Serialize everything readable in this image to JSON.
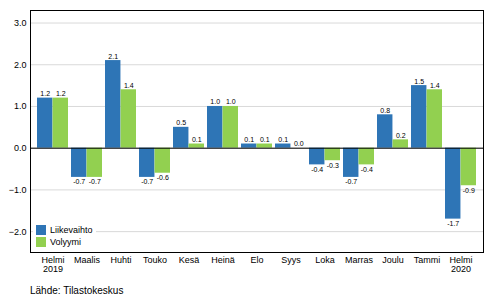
{
  "chart_data": {
    "type": "bar",
    "categories": [
      "Helmi\n2019",
      "Maalis",
      "Huhti",
      "Touko",
      "Kesä",
      "Heinä",
      "Elo",
      "Syys",
      "Loka",
      "Marras",
      "Joulu",
      "Tammi",
      "Helmi\n2020"
    ],
    "series": [
      {
        "name": "Liikevaihto",
        "color": "#2E75B6",
        "values": [
          1.2,
          -0.7,
          2.1,
          -0.7,
          0.5,
          1.0,
          0.1,
          0.1,
          -0.4,
          -0.7,
          0.8,
          1.5,
          -1.7
        ],
        "value_labels": [
          "1.2",
          "-0.7",
          "2.1",
          "-0.7",
          "0.5",
          "1.0",
          "0.1",
          "0.1",
          "-0.4",
          "-0.7",
          "0.8",
          "1.5",
          "-1.7"
        ]
      },
      {
        "name": "Volyymi",
        "color": "#92D050",
        "values": [
          1.2,
          -0.7,
          1.4,
          -0.6,
          0.1,
          1.0,
          0.1,
          0.0,
          -0.3,
          -0.4,
          0.2,
          1.4,
          -0.9
        ],
        "value_labels": [
          "1.2",
          "-0.7",
          "1.4",
          "-0.6",
          "0.1",
          "1.0",
          "0.1",
          "0.0",
          "-0.3",
          "-0.4",
          "0.2",
          "1.4",
          "-0.9"
        ]
      }
    ],
    "ylim": [
      -2.5,
      3.3
    ],
    "yticks": [
      -2,
      -1,
      0,
      1,
      2,
      3
    ],
    "grid": true,
    "legend": "lower left",
    "data_labels": true,
    "caption": "Lähde: Tilastokeskus"
  }
}
